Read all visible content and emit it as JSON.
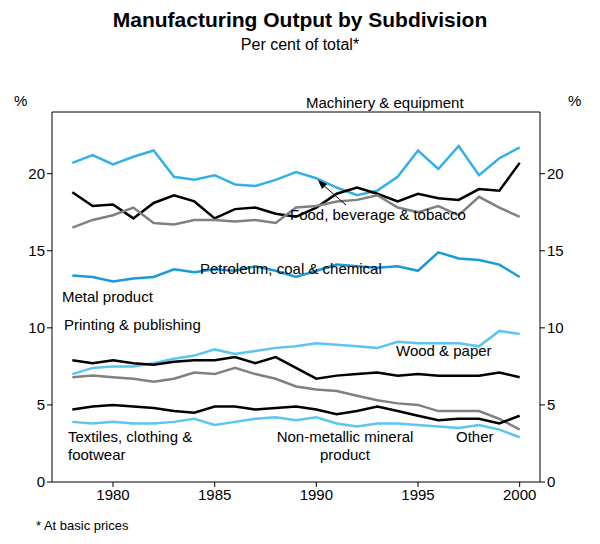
{
  "chart_data": {
    "type": "line",
    "title": "Manufacturing Output by Subdivision",
    "subtitle": "Per cent of total*",
    "y_label": "%",
    "note": "* At basic prices",
    "x": [
      1978,
      1979,
      1980,
      1981,
      1982,
      1983,
      1984,
      1985,
      1986,
      1987,
      1988,
      1989,
      1990,
      1991,
      1992,
      1993,
      1994,
      1995,
      1996,
      1997,
      1998,
      1999,
      2000
    ],
    "xlim": [
      1977,
      2001
    ],
    "xticks": [
      1980,
      1985,
      1990,
      1995,
      2000
    ],
    "ylim": [
      0,
      24
    ],
    "yticks": [
      0,
      5,
      10,
      15,
      20
    ],
    "grid": false,
    "series": [
      {
        "name": "Machinery & equipment",
        "color": "#33b0ea",
        "values": [
          20.7,
          21.2,
          20.6,
          21.1,
          21.5,
          19.8,
          19.6,
          19.9,
          19.3,
          19.2,
          19.6,
          20.1,
          19.7,
          19.1,
          18.6,
          18.9,
          19.8,
          21.5,
          20.3,
          21.8,
          19.9,
          21.0,
          21.7
        ]
      },
      {
        "name": "Food, beverage & tobacco",
        "color": "#000000",
        "values": [
          18.8,
          17.9,
          18.0,
          17.1,
          18.1,
          18.6,
          18.2,
          17.1,
          17.7,
          17.8,
          17.4,
          17.2,
          17.8,
          18.7,
          19.1,
          18.7,
          18.2,
          18.7,
          18.4,
          18.3,
          19.0,
          18.9,
          20.7
        ]
      },
      {
        "name": "Metal product",
        "color": "#808080",
        "values": [
          16.5,
          17.0,
          17.3,
          17.8,
          16.8,
          16.7,
          17.0,
          17.0,
          16.9,
          17.0,
          16.8,
          17.8,
          17.9,
          18.2,
          18.3,
          18.6,
          17.8,
          17.5,
          17.9,
          17.3,
          18.5,
          17.8,
          17.2
        ]
      },
      {
        "name": "Petroleum, coal & chemical",
        "color": "#1a9ad6",
        "values": [
          13.4,
          13.3,
          13.0,
          13.2,
          13.3,
          13.8,
          13.6,
          13.8,
          13.7,
          14.0,
          13.7,
          13.3,
          13.7,
          14.1,
          14.0,
          13.9,
          14.0,
          13.7,
          14.9,
          14.5,
          14.4,
          14.1,
          13.3
        ]
      },
      {
        "name": "Printing & publishing",
        "color": "#5cc4f0",
        "values": [
          7.0,
          7.4,
          7.5,
          7.5,
          7.7,
          8.0,
          8.2,
          8.6,
          8.3,
          8.5,
          8.7,
          8.8,
          9.0,
          8.9,
          8.8,
          8.7,
          9.1,
          9.0,
          9.0,
          9.0,
          8.8,
          9.8,
          9.6
        ]
      },
      {
        "name": "Wood & paper",
        "color": "#000000",
        "values": [
          7.9,
          7.7,
          7.9,
          7.7,
          7.6,
          7.8,
          7.9,
          7.9,
          8.1,
          7.7,
          8.1,
          7.4,
          6.7,
          6.9,
          7.0,
          7.1,
          6.9,
          7.0,
          6.9,
          6.9,
          6.9,
          7.1,
          6.8
        ]
      },
      {
        "name": "Textiles, clothing & footwear",
        "color": "#808080",
        "values": [
          6.8,
          6.9,
          6.8,
          6.7,
          6.5,
          6.7,
          7.1,
          7.0,
          7.4,
          7.0,
          6.7,
          6.2,
          6.0,
          5.9,
          5.6,
          5.3,
          5.1,
          5.0,
          4.6,
          4.6,
          4.6,
          4.1,
          3.4
        ]
      },
      {
        "name": "Non-metallic mineral product",
        "color": "#000000",
        "values": [
          4.7,
          4.9,
          5.0,
          4.9,
          4.8,
          4.6,
          4.5,
          4.9,
          4.9,
          4.7,
          4.8,
          4.9,
          4.7,
          4.4,
          4.6,
          4.9,
          4.6,
          4.3,
          4.0,
          4.1,
          4.1,
          3.8,
          4.3
        ]
      },
      {
        "name": "Other",
        "color": "#5cc4f0",
        "values": [
          3.9,
          3.8,
          3.9,
          3.8,
          3.8,
          3.9,
          4.1,
          3.7,
          3.9,
          4.1,
          4.2,
          4.0,
          4.2,
          3.8,
          3.6,
          3.8,
          3.8,
          3.7,
          3.6,
          3.5,
          3.7,
          3.4,
          2.9
        ]
      }
    ]
  }
}
